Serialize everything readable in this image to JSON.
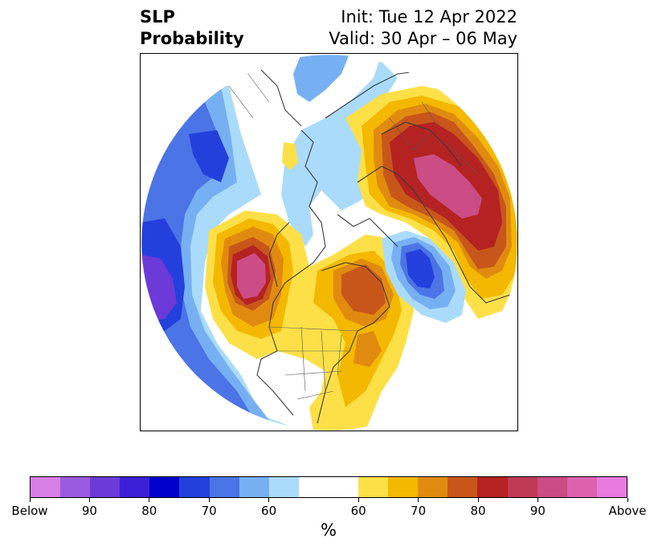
{
  "title": {
    "left_line1": "SLP",
    "left_line2": "Probability",
    "right_line1": "Init: Tue 12 Apr 2022",
    "right_line2": "Valid: 30 Apr – 06 May"
  },
  "colorbar": {
    "colors": [
      "#d87fe6",
      "#9b5be0",
      "#6b3ad9",
      "#3b1fd6",
      "#0000cc",
      "#2340dc",
      "#4b74e6",
      "#77b0f2",
      "#aadbfa",
      "#ffffff",
      "#ffffff",
      "#fde047",
      "#f4b800",
      "#e08b10",
      "#c8561a",
      "#b42222",
      "#c03a55",
      "#cc4c85",
      "#dd62ad",
      "#e87ae0"
    ],
    "tick_labels": [
      "Below",
      "90",
      "80",
      "70",
      "60",
      "60",
      "70",
      "80",
      "90",
      "Above"
    ],
    "unit": "%"
  },
  "map": {
    "projection": "polar stereographic (North Pole)",
    "colors": {
      "below_90": "#6b3ad9",
      "below_80": "#2340dc",
      "below_70": "#4b74e6",
      "below_60": "#77b0f2",
      "below_50": "#aadbfa",
      "above_50": "#fde047",
      "above_60": "#f4b800",
      "above_70": "#e08b10",
      "above_75": "#c8561a",
      "above_80": "#b42222",
      "above_85": "#c03a55",
      "above_90": "#cc4c85",
      "coast": "#3a3a3a"
    }
  }
}
